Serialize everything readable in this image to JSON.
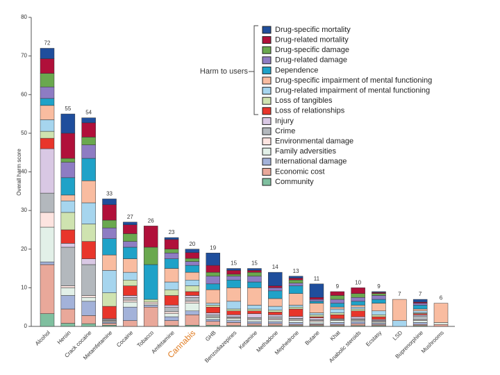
{
  "chart_data": {
    "type": "stacked_bar",
    "y_label": "Overall harm score",
    "annotation": "Harm to users",
    "ylim": [
      0,
      80
    ],
    "yticks": [
      0,
      10,
      20,
      30,
      40,
      50,
      60,
      70,
      80
    ],
    "grid": false,
    "legend": "upper right",
    "highlighted_category": "Cannabis",
    "highlight_color": "#e07b20",
    "categories": [
      "Alcohol",
      "Heroin",
      "Crack cocaine",
      "Metamfetamine",
      "Cocaine",
      "Tobacco",
      "Amfetamine",
      "Cannabis",
      "GHB",
      "Benzodiazepines",
      "Ketamine",
      "Methadone",
      "Mephedrone",
      "Butane",
      "Khat",
      "Anabolic steroids",
      "Ecstasy",
      "LSD",
      "Buprenorphine",
      "Mushrooms"
    ],
    "totals": [
      72,
      55,
      54,
      33,
      27,
      26,
      23,
      20,
      19,
      15,
      15,
      14,
      13,
      11,
      9,
      10,
      9,
      7,
      7,
      6
    ],
    "series": [
      {
        "name": "Drug-specific mortality",
        "color": "#1f4e9c",
        "values": [
          2.7,
          5,
          1.3,
          1.5,
          0.7,
          0,
          0.5,
          0.9,
          3.2,
          0.5,
          0.5,
          3.5,
          0.5,
          3.5,
          0,
          0,
          0.2,
          0,
          0.7,
          0
        ]
      },
      {
        "name": "Drug-related mortality",
        "color": "#b0103a",
        "values": [
          3.8,
          6.5,
          3.7,
          4,
          2.3,
          5.5,
          2.5,
          1.5,
          1.8,
          1,
          0.5,
          0.5,
          0.5,
          0.5,
          1,
          1.5,
          0.3,
          0,
          0.3,
          0
        ]
      },
      {
        "name": "Drug-specific damage",
        "color": "#6aa84f",
        "values": [
          3.5,
          1,
          2,
          2,
          2,
          4.5,
          1,
          0.8,
          1,
          0.5,
          1,
          0,
          0.8,
          0,
          1,
          1,
          0.5,
          0,
          0,
          0
        ]
      },
      {
        "name": "Drug-related damage",
        "color": "#8e7cc3",
        "values": [
          3,
          4,
          3.5,
          2.8,
          1.5,
          0,
          1.5,
          1,
          2,
          1,
          1.5,
          0.8,
          0.7,
          0.5,
          1,
          1,
          1,
          0,
          0.5,
          0
        ]
      },
      {
        "name": "Dependence",
        "color": "#1fa2c8",
        "values": [
          1.8,
          4.5,
          5.8,
          4.2,
          3,
          9,
          2.5,
          1.8,
          1.5,
          2,
          1.5,
          2,
          2,
          0.5,
          1,
          1,
          1,
          0,
          1,
          0
        ]
      },
      {
        "name": "Drug-specific impairment of mental functioning",
        "color": "#f9bca0",
        "values": [
          3.7,
          1.5,
          5.7,
          4,
          3.5,
          0,
          3.5,
          2,
          3.5,
          3.5,
          4.5,
          2,
          3,
          2.5,
          0.5,
          0.5,
          2,
          5.5,
          0.5,
          5
        ]
      },
      {
        "name": "Drug-related impairment of mental functioning",
        "color": "#a6d5ee",
        "values": [
          3,
          3,
          5.5,
          5.8,
          2,
          0,
          2,
          1.5,
          0.5,
          2,
          1,
          1,
          0.5,
          0.5,
          1,
          0.5,
          1,
          1.5,
          0.5,
          0
        ]
      },
      {
        "name": "Loss of tangibles",
        "color": "#cfe3b0",
        "values": [
          1.8,
          4.5,
          4.5,
          3.5,
          1.5,
          0.7,
          1.5,
          1.5,
          0.5,
          0.5,
          0.5,
          0.5,
          0.5,
          0.5,
          0.5,
          0.5,
          0.5,
          0,
          0.2,
          0
        ]
      },
      {
        "name": "Loss of relationships",
        "color": "#e8352b",
        "values": [
          2.7,
          3.5,
          4.5,
          3.2,
          2.5,
          0,
          2.5,
          1,
          1.5,
          1,
          0.7,
          0.7,
          1.9,
          0.3,
          1,
          1.5,
          0.7,
          0,
          0.3,
          0
        ]
      },
      {
        "name": "Injury",
        "color": "#d9c8e4",
        "values": [
          11.5,
          1,
          1.5,
          0.2,
          0.5,
          0,
          0.5,
          0.5,
          0.5,
          0.5,
          1,
          0.5,
          0.5,
          0.5,
          0,
          0.5,
          0.3,
          0,
          0.3,
          0
        ]
      },
      {
        "name": "Crime",
        "color": "#b3b8bd",
        "values": [
          5,
          10,
          8,
          0.3,
          0.7,
          0,
          1.2,
          1,
          0.5,
          0.3,
          0.3,
          0.5,
          0.3,
          0.2,
          0.3,
          0.3,
          0.2,
          0,
          1,
          0
        ]
      },
      {
        "name": "Environmental damage",
        "color": "#fde4e0",
        "values": [
          3.8,
          0.5,
          0.5,
          0.2,
          0.5,
          0.5,
          0.5,
          0.5,
          0.2,
          0.2,
          0.3,
          0.3,
          0.3,
          0.3,
          0.2,
          0.2,
          0.2,
          0,
          0.2,
          0
        ]
      },
      {
        "name": "Family adversities",
        "color": "#e2f0e8",
        "values": [
          9,
          2,
          1,
          0.2,
          1.3,
          0.3,
          0.8,
          2,
          0.5,
          0.5,
          0.5,
          0.5,
          0.5,
          0.5,
          0.5,
          0.3,
          0.3,
          0,
          0.5,
          0.5
        ]
      },
      {
        "name": "International damage",
        "color": "#a3b2d9",
        "values": [
          0.7,
          3.5,
          3.7,
          0.3,
          3.5,
          0.5,
          1,
          1,
          0.5,
          0.5,
          0.5,
          0.5,
          0.5,
          0.2,
          0.5,
          0.5,
          0.3,
          0,
          0.5,
          0
        ]
      },
      {
        "name": "Economic cost",
        "color": "#e9a89a",
        "values": [
          12.7,
          3.7,
          2.1,
          0.5,
          1.5,
          5,
          1.3,
          2.7,
          1,
          0.8,
          0.5,
          0.5,
          0.3,
          0.3,
          0.3,
          0.5,
          0.3,
          0,
          0.3,
          0.5
        ]
      },
      {
        "name": "Community",
        "color": "#7fbf9f",
        "values": [
          3.3,
          0.8,
          0.7,
          0.3,
          0,
          0,
          0.2,
          0.3,
          0.3,
          0.2,
          0.2,
          0.2,
          0.2,
          0.2,
          0.2,
          0.2,
          0.2,
          0,
          0.2,
          0
        ]
      }
    ]
  }
}
